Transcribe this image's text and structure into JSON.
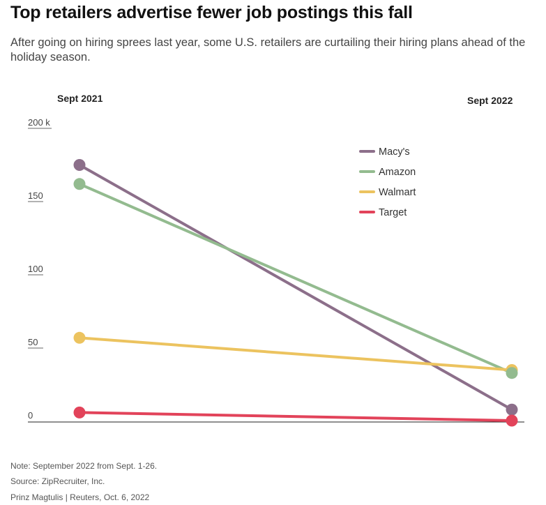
{
  "header": {
    "title": "Top retailers advertise fewer job postings this fall",
    "subtitle": "After going on hiring sprees last year, some U.S. retailers are curtailing their hiring plans ahead of the holiday season."
  },
  "chart_data": {
    "type": "line",
    "title": "Top retailers advertise fewer job postings this fall",
    "x": [
      "Sept 2021",
      "Sept 2022"
    ],
    "ylim": [
      0,
      200
    ],
    "y_ticks": [
      "0",
      "50",
      "100",
      "150",
      "200 k"
    ],
    "y_tick_values": [
      0,
      50,
      100,
      150,
      200
    ],
    "grid": false,
    "legend_position": "top-right",
    "series": [
      {
        "name": "Macy's",
        "color": "#8c6f8a",
        "values": [
          175,
          8
        ]
      },
      {
        "name": "Amazon",
        "color": "#93bb8f",
        "values": [
          162,
          33
        ]
      },
      {
        "name": "Walmart",
        "color": "#ecc35f",
        "values": [
          57,
          35
        ]
      },
      {
        "name": "Target",
        "color": "#e2435a",
        "values": [
          6,
          0.5
        ]
      }
    ]
  },
  "footer": {
    "note": "Note: September 2022 from Sept. 1-26.",
    "source": "Source: ZipRecruiter, Inc.",
    "credit": "Prinz Magtulis  |  Reuters, Oct. 6, 2022"
  }
}
